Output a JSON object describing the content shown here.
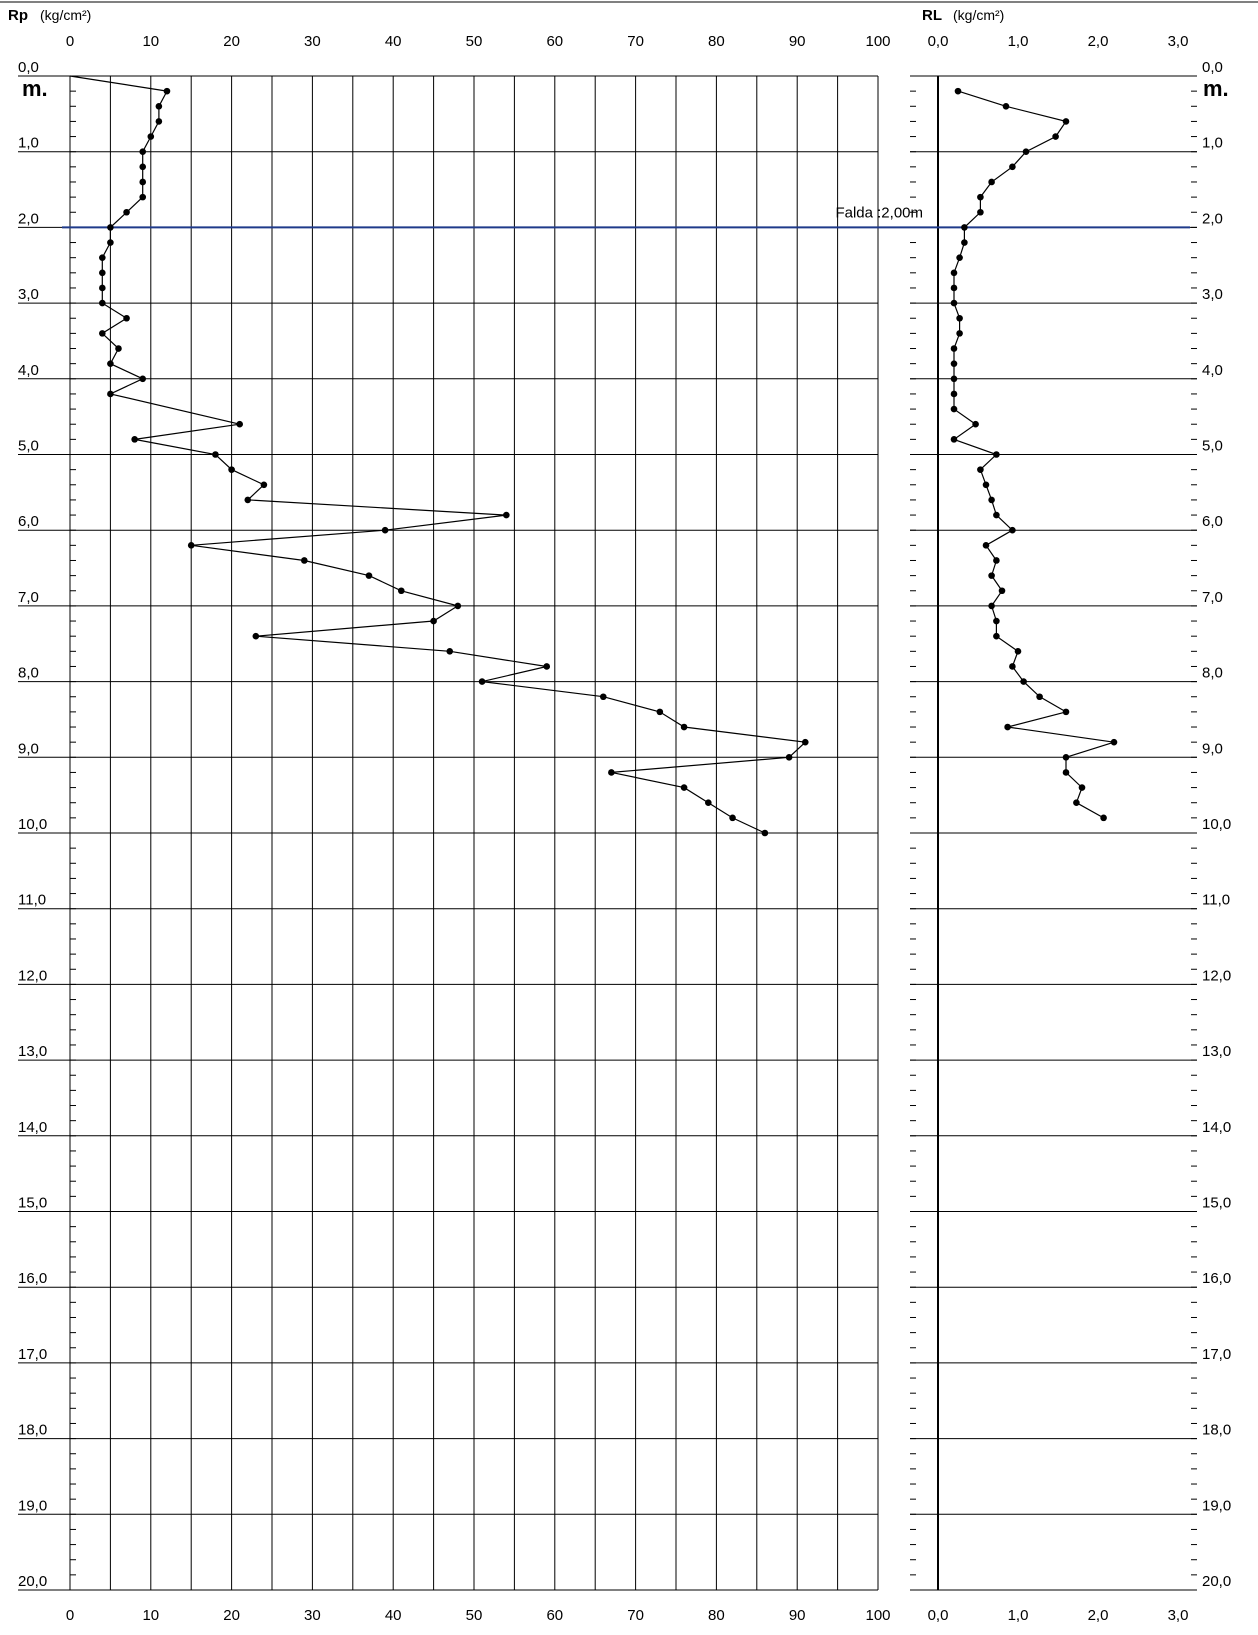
{
  "chart_data": [
    {
      "type": "line",
      "panel": "left",
      "param_label": "Rp",
      "unit_label": "(kg/cm²)",
      "x_ticks": [
        "0",
        "10",
        "20",
        "30",
        "40",
        "50",
        "60",
        "70",
        "80",
        "90",
        "100"
      ],
      "xlim": [
        0,
        100
      ],
      "ylim": [
        0,
        20
      ],
      "y_inverted": true,
      "depth_labels": [
        "0,0",
        "1,0",
        "2,0",
        "3,0",
        "4,0",
        "5,0",
        "6,0",
        "7,0",
        "8,0",
        "9,0",
        "10,0",
        "11,0",
        "12,0",
        "13,0",
        "14,0",
        "15,0",
        "16,0",
        "17,0",
        "18,0",
        "19,0",
        "20,0"
      ],
      "depth_unit": "m.",
      "grid": true,
      "series": [
        {
          "x": [
            0,
            12,
            11,
            11,
            10,
            9,
            9,
            9,
            9,
            7,
            5,
            5,
            4,
            4,
            4,
            4,
            7,
            4,
            6,
            5,
            9,
            5,
            21,
            8,
            18,
            20,
            24,
            22,
            54,
            39,
            15,
            29,
            37,
            41,
            48,
            45,
            23,
            47,
            59,
            51,
            66,
            73,
            76,
            91,
            89,
            67,
            76,
            79,
            82,
            86
          ],
          "y": [
            0.0,
            0.2,
            0.4,
            0.6,
            0.8,
            1.0,
            1.2,
            1.4,
            1.6,
            1.8,
            2.0,
            2.2,
            2.4,
            2.6,
            2.8,
            3.0,
            3.2,
            3.4,
            3.6,
            3.8,
            4.0,
            4.2,
            4.6,
            4.8,
            5.0,
            5.2,
            5.4,
            5.6,
            5.8,
            6.0,
            6.2,
            6.4,
            6.6,
            6.8,
            7.0,
            7.2,
            7.4,
            7.6,
            7.8,
            8.0,
            8.2,
            8.4,
            8.6,
            8.8,
            9.0,
            9.2,
            9.4,
            9.6,
            9.8,
            10.0
          ]
        }
      ]
    },
    {
      "type": "line",
      "panel": "right",
      "param_label": "RL",
      "unit_label": "(kg/cm²)",
      "x_ticks": [
        "0,0",
        "1,0",
        "2,0",
        "3,0"
      ],
      "xlim": [
        0,
        3
      ],
      "ylim": [
        0,
        20
      ],
      "y_inverted": true,
      "depth_labels": [
        "0,0",
        "1,0",
        "2,0",
        "3,0",
        "4,0",
        "5,0",
        "6,0",
        "7,0",
        "8,0",
        "9,0",
        "10,0",
        "11,0",
        "12,0",
        "13,0",
        "14,0",
        "15,0",
        "16,0",
        "17,0",
        "18,0",
        "19,0",
        "20,0"
      ],
      "depth_unit": "m.",
      "grid": false,
      "series": [
        {
          "x": [
            0.25,
            0.85,
            1.6,
            1.47,
            1.1,
            0.93,
            0.67,
            0.53,
            0.53,
            0.33,
            0.33,
            0.27,
            0.2,
            0.2,
            0.2,
            0.27,
            0.27,
            0.2,
            0.2,
            0.2,
            0.2,
            0.2,
            0.47,
            0.2,
            0.73,
            0.53,
            0.6,
            0.67,
            0.73,
            0.93,
            0.6,
            0.73,
            0.67,
            0.8,
            0.67,
            0.73,
            0.73,
            1.0,
            0.93,
            1.07,
            1.27,
            1.6,
            0.87,
            2.2,
            1.6,
            1.6,
            1.8,
            1.73,
            2.07
          ],
          "y": [
            0.2,
            0.4,
            0.6,
            0.8,
            1.0,
            1.2,
            1.4,
            1.6,
            1.8,
            2.0,
            2.2,
            2.4,
            2.6,
            2.8,
            3.0,
            3.2,
            3.4,
            3.6,
            3.8,
            4.0,
            4.2,
            4.4,
            4.6,
            4.8,
            5.0,
            5.2,
            5.4,
            5.6,
            5.8,
            6.0,
            6.2,
            6.4,
            6.6,
            6.8,
            7.0,
            7.2,
            7.4,
            7.6,
            7.8,
            8.0,
            8.2,
            8.4,
            8.6,
            8.8,
            9.0,
            9.2,
            9.4,
            9.6,
            9.8
          ]
        }
      ]
    }
  ],
  "water_table": {
    "label": "Falda :2,00m",
    "depth": 2.0,
    "color": "#1f3a8a"
  },
  "colors": {
    "grid": "#000000",
    "line": "#000000",
    "marker": "#000000"
  }
}
